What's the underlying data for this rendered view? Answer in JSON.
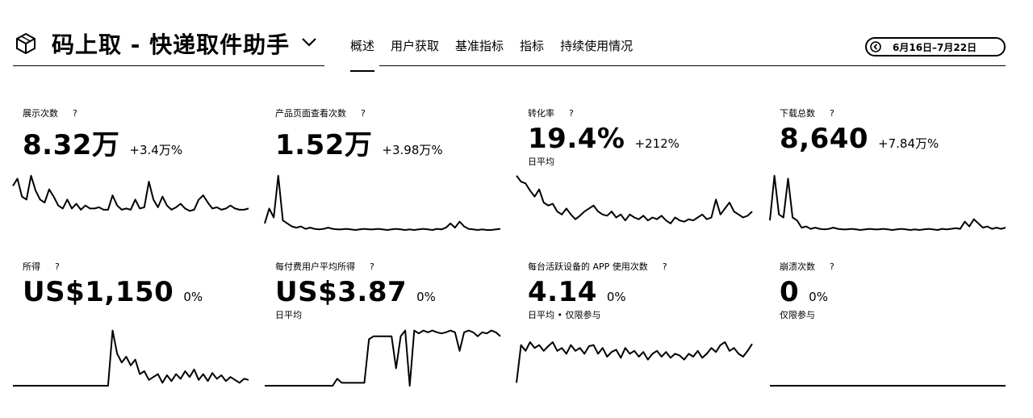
{
  "header": {
    "app_icon": "cube-icon",
    "title": "码上取 - 快递取件助手",
    "chevron_icon": "chevron-down-icon",
    "tabs": [
      {
        "label": "概述",
        "active": true
      },
      {
        "label": "用户获取",
        "active": false
      },
      {
        "label": "基准指标",
        "active": false
      },
      {
        "label": "指标",
        "active": false
      },
      {
        "label": "持续使用情况",
        "active": false
      }
    ],
    "date_range": "6月16日–7月22日",
    "date_back_icon": "arrow-left-circle-icon"
  },
  "metrics": [
    {
      "label": "展示次数",
      "help": "?",
      "value": "8.32万",
      "change": "+3.4万%",
      "sub": "",
      "series": [
        78,
        90,
        60,
        55,
        95,
        70,
        55,
        50,
        72,
        60,
        45,
        40,
        55,
        40,
        48,
        38,
        45,
        40,
        40,
        42,
        38,
        38,
        62,
        45,
        38,
        40,
        38,
        55,
        40,
        42,
        85,
        55,
        42,
        60,
        45,
        38,
        42,
        48,
        40,
        36,
        38,
        55,
        62,
        50,
        40,
        42,
        38,
        40,
        45,
        40,
        38,
        38,
        40
      ]
    },
    {
      "label": "产品页面查看次数",
      "help": "?",
      "value": "1.52万",
      "change": "+3.98万%",
      "sub": "",
      "series": [
        15,
        40,
        25,
        95,
        20,
        15,
        10,
        8,
        10,
        6,
        8,
        6,
        5,
        6,
        8,
        6,
        5,
        5,
        6,
        5,
        4,
        5,
        6,
        5,
        5,
        6,
        5,
        4,
        5,
        6,
        5,
        4,
        5,
        4,
        5,
        6,
        5,
        4,
        6,
        5,
        8,
        15,
        8,
        18,
        10,
        6,
        5,
        4,
        5,
        4,
        4,
        5,
        6
      ]
    },
    {
      "label": "转化率",
      "help": "?",
      "value": "19.4%",
      "change": "+212%",
      "sub": "日平均",
      "series": [
        95,
        85,
        82,
        70,
        60,
        72,
        50,
        45,
        48,
        35,
        30,
        40,
        30,
        22,
        28,
        35,
        40,
        45,
        35,
        30,
        28,
        35,
        25,
        30,
        20,
        30,
        25,
        22,
        28,
        20,
        25,
        22,
        28,
        20,
        15,
        25,
        20,
        18,
        22,
        20,
        25,
        30,
        22,
        25,
        55,
        30,
        40,
        50,
        35,
        30,
        25,
        28,
        35
      ]
    },
    {
      "label": "下载总数",
      "help": "?",
      "value": "8,640",
      "change": "+7.84万%",
      "sub": "",
      "series": [
        20,
        95,
        30,
        25,
        90,
        25,
        20,
        8,
        10,
        6,
        8,
        6,
        5,
        6,
        8,
        6,
        5,
        5,
        6,
        5,
        4,
        5,
        6,
        5,
        5,
        6,
        5,
        4,
        5,
        6,
        5,
        4,
        5,
        4,
        5,
        6,
        5,
        4,
        6,
        5,
        6,
        7,
        6,
        18,
        10,
        22,
        15,
        8,
        10,
        6,
        8,
        6,
        8
      ]
    },
    {
      "label": "所得",
      "help": "?",
      "value": "US$1,150",
      "change": "0%",
      "sub": "",
      "series": [
        0,
        0,
        0,
        0,
        0,
        0,
        0,
        0,
        0,
        0,
        0,
        0,
        0,
        0,
        0,
        0,
        0,
        0,
        0,
        0,
        0,
        0,
        95,
        55,
        40,
        50,
        35,
        45,
        20,
        25,
        10,
        15,
        20,
        5,
        18,
        8,
        20,
        12,
        25,
        15,
        28,
        10,
        20,
        8,
        22,
        12,
        18,
        8,
        15,
        10,
        5,
        12,
        10
      ]
    },
    {
      "label": "每付费用户平均所得",
      "help": "?",
      "value": "US$3.87",
      "change": "0%",
      "sub": "日平均",
      "series": [
        0,
        0,
        0,
        0,
        0,
        0,
        0,
        0,
        0,
        0,
        0,
        0,
        0,
        0,
        0,
        0,
        12,
        5,
        5,
        5,
        5,
        5,
        5,
        80,
        85,
        85,
        85,
        85,
        85,
        30,
        85,
        95,
        0,
        95,
        90,
        95,
        92,
        95,
        92,
        90,
        92,
        95,
        92,
        60,
        92,
        95,
        92,
        85,
        92,
        90,
        95,
        92,
        85
      ]
    },
    {
      "label": "每台活跃设备的 APP 使用次数",
      "help": "?",
      "value": "4.14",
      "change": "0%",
      "sub": "日平均 • 仅限参与",
      "series": [
        5,
        70,
        60,
        75,
        65,
        70,
        60,
        68,
        75,
        60,
        65,
        55,
        70,
        60,
        65,
        55,
        68,
        70,
        55,
        65,
        50,
        58,
        62,
        48,
        65,
        55,
        60,
        50,
        58,
        45,
        55,
        60,
        50,
        58,
        48,
        55,
        52,
        45,
        55,
        50,
        60,
        48,
        55,
        65,
        58,
        70,
        75,
        60,
        65,
        55,
        50,
        60,
        72
      ]
    },
    {
      "label": "崩溃次数",
      "help": "?",
      "value": "0",
      "change": "0%",
      "sub": "仅限参与",
      "series": [
        0,
        0,
        0,
        0,
        0,
        0,
        0,
        0,
        0,
        0,
        0,
        0,
        0,
        0,
        0,
        0,
        0,
        0,
        0,
        0,
        0,
        0,
        0,
        0,
        0,
        0,
        0,
        0,
        0,
        0,
        0,
        0,
        0,
        0,
        0,
        0,
        0,
        0,
        0,
        0,
        0,
        0,
        0,
        0,
        0,
        0,
        0,
        0,
        0,
        0,
        0,
        0,
        0
      ]
    }
  ]
}
